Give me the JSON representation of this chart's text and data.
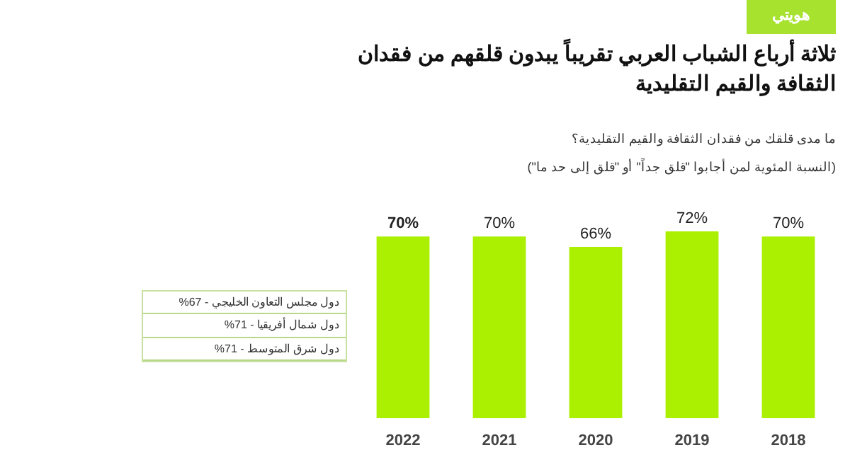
{
  "chart_data": {
    "type": "bar",
    "title": "ثلاثة أرباع الشباب العربي تقريباً يبدون قلقهم من فقدان الثقافة والقيم التقليدية",
    "subtitle": "ما مدى قلقك من فقدان الثقافة والقيم التقليدية؟\n(النسبة المئوية لمن أجابوا \"قلق جداً\" أو \"قلق إلى حد ما\")",
    "annotations": [
      "هويتي",
      "دول مجلس التعاون الخليجي - 67%",
      "دول شمال أفريقيا - 71%",
      "دول شرق المتوسط - 71%"
    ],
    "categories": [
      "2022",
      "2021",
      "2020",
      "2019",
      "2018"
    ],
    "values": [
      70,
      70,
      66,
      72,
      70
    ],
    "color": "#aaf000",
    "value_labels": [
      "70%",
      "70%",
      "66%",
      "72%",
      "70%"
    ],
    "grid": false
  }
}
